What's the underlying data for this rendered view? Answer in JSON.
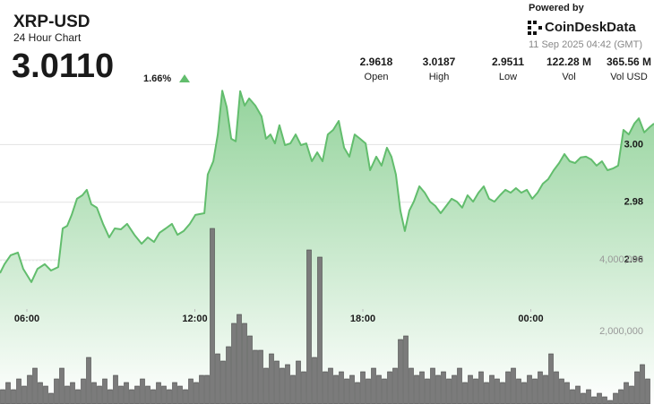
{
  "header": {
    "title": "XRP-USD",
    "subtitle": "24 Hour Chart",
    "price": "3.0110",
    "change": "1.66%",
    "powered_by": "Powered by",
    "brand": "CoinDeskData",
    "timestamp": "11 Sep 2025 04:42 (GMT)"
  },
  "stats": [
    {
      "value": "2.9618",
      "label": "Open"
    },
    {
      "value": "3.0187",
      "label": "High"
    },
    {
      "value": "2.9511",
      "label": "Low"
    },
    {
      "value": "122.28 M",
      "label": "Vol"
    },
    {
      "value": "365.56 M",
      "label": "Vol USD"
    }
  ],
  "chart_data": {
    "type": "line",
    "xlim": [
      5.04,
      28.4
    ],
    "xticks": [
      {
        "value": 6,
        "label": "06:00"
      },
      {
        "value": 12,
        "label": "12:00"
      },
      {
        "value": 18,
        "label": "18:00"
      },
      {
        "value": 24,
        "label": "00:00"
      }
    ],
    "ylim": [
      2.91,
      3.02
    ],
    "yticks": [
      2.96,
      2.98,
      {
        "value": 3.0,
        "label": "3.00"
      }
    ],
    "y2lim": [
      0,
      8850000
    ],
    "y2ticks": [
      {
        "value": 2000000,
        "label": "2,000,000"
      },
      {
        "value": 4000000,
        "label": "4,000,000"
      }
    ],
    "grid": true,
    "series": [
      {
        "type": "area",
        "color": "#62bd6d",
        "x": [
          5.04,
          5.2,
          5.42,
          5.68,
          5.87,
          6.16,
          6.38,
          6.64,
          6.86,
          7.12,
          7.28,
          7.44,
          7.6,
          7.79,
          7.98,
          8.14,
          8.3,
          8.5,
          8.72,
          8.94,
          9.14,
          9.36,
          9.58,
          9.84,
          10.1,
          10.32,
          10.54,
          10.74,
          10.96,
          11.18,
          11.38,
          11.6,
          11.82,
          12.02,
          12.34,
          12.46,
          12.66,
          12.82,
          12.98,
          13.14,
          13.3,
          13.46,
          13.62,
          13.78,
          13.94,
          14.16,
          14.38,
          14.54,
          14.7,
          14.86,
          15.02,
          15.22,
          15.41,
          15.6,
          15.79,
          15.98,
          16.18,
          16.37,
          16.56,
          16.75,
          16.94,
          17.14,
          17.33,
          17.52,
          17.71,
          17.9,
          18.1,
          18.26,
          18.48,
          18.67,
          18.86,
          19.02,
          19.18,
          19.34,
          19.5,
          19.66,
          19.82,
          20.02,
          20.21,
          20.4,
          20.59,
          20.78,
          20.98,
          21.17,
          21.36,
          21.55,
          21.74,
          21.94,
          22.13,
          22.32,
          22.51,
          22.7,
          22.9,
          23.09,
          23.28,
          23.47,
          23.66,
          23.86,
          24.05,
          24.24,
          24.43,
          24.62,
          24.82,
          25.01,
          25.2,
          25.39,
          25.58,
          25.78,
          25.97,
          26.16,
          26.35,
          26.54,
          26.74,
          26.93,
          27.12,
          27.31,
          27.5,
          27.7,
          27.86,
          28.05,
          28.24,
          28.4
        ],
        "values": [
          2.9554,
          2.9585,
          2.9616,
          2.9625,
          2.9569,
          2.9523,
          2.9569,
          2.9585,
          2.9563,
          2.9575,
          2.9709,
          2.9718,
          2.9756,
          2.9812,
          2.9824,
          2.9843,
          2.9793,
          2.9781,
          2.9725,
          2.9678,
          2.9709,
          2.9706,
          2.9725,
          2.9687,
          2.9656,
          2.9678,
          2.9662,
          2.9694,
          2.9709,
          2.9725,
          2.9687,
          2.97,
          2.9725,
          2.9756,
          2.9762,
          2.9896,
          2.9942,
          3.0035,
          3.0187,
          3.0129,
          3.002,
          3.0011,
          3.0185,
          3.0135,
          3.016,
          3.0135,
          3.0098,
          3.002,
          3.0035,
          3.0004,
          3.0067,
          2.9998,
          3.0004,
          3.0035,
          2.9998,
          3.0004,
          2.9942,
          2.9973,
          2.9942,
          3.0035,
          3.0051,
          3.0082,
          2.9989,
          2.9958,
          3.0035,
          3.002,
          3.0004,
          2.9911,
          2.9958,
          2.9927,
          2.9989,
          2.9958,
          2.9896,
          2.9771,
          2.97,
          2.9771,
          2.9802,
          2.9855,
          2.9833,
          2.9802,
          2.9787,
          2.9762,
          2.9787,
          2.9812,
          2.9802,
          2.9781,
          2.9824,
          2.9802,
          2.9833,
          2.9855,
          2.9812,
          2.9802,
          2.9824,
          2.9843,
          2.9833,
          2.9849,
          2.9833,
          2.9843,
          2.9812,
          2.9833,
          2.9864,
          2.988,
          2.9911,
          2.9936,
          2.9967,
          2.9942,
          2.9936,
          2.9955,
          2.9958,
          2.9948,
          2.9927,
          2.9942,
          2.9911,
          2.9917,
          2.9927,
          3.0051,
          3.0035,
          3.0073,
          3.0091,
          3.0042,
          3.006,
          3.0073
        ]
      },
      {
        "type": "bar",
        "axis": "y2",
        "color": "#7b7b7b",
        "x": [
          5.136,
          5.328,
          5.52,
          5.712,
          5.904,
          6.096,
          6.288,
          6.48,
          6.672,
          6.864,
          7.056,
          7.248,
          7.44,
          7.632,
          7.824,
          8.016,
          8.208,
          8.4,
          8.592,
          8.784,
          8.976,
          9.168,
          9.36,
          9.552,
          9.744,
          9.936,
          10.128,
          10.32,
          10.512,
          10.704,
          10.896,
          11.088,
          11.28,
          11.472,
          11.664,
          11.856,
          12.048,
          12.24,
          12.432,
          12.624,
          12.816,
          13.008,
          13.2,
          13.392,
          13.584,
          13.776,
          13.968,
          14.16,
          14.352,
          14.544,
          14.736,
          14.928,
          15.12,
          15.312,
          15.504,
          15.696,
          15.888,
          16.08,
          16.272,
          16.464,
          16.656,
          16.848,
          17.04,
          17.232,
          17.424,
          17.616,
          17.808,
          18.0,
          18.192,
          18.384,
          18.576,
          18.768,
          18.96,
          19.152,
          19.344,
          19.536,
          19.728,
          19.92,
          20.112,
          20.304,
          20.496,
          20.688,
          20.88,
          21.072,
          21.264,
          21.456,
          21.648,
          21.84,
          22.032,
          22.224,
          22.416,
          22.608,
          22.8,
          22.992,
          23.184,
          23.376,
          23.568,
          23.76,
          23.952,
          24.144,
          24.336,
          24.528,
          24.72,
          24.912,
          25.104,
          25.296,
          25.488,
          25.68,
          25.872,
          26.064,
          26.256,
          26.448,
          26.64,
          26.832,
          27.024,
          27.216,
          27.408,
          27.6,
          27.792,
          27.984,
          28.176
        ],
        "values": [
          400000,
          600000,
          400000,
          700000,
          500000,
          800000,
          1000000,
          600000,
          500000,
          300000,
          700000,
          1000000,
          500000,
          600000,
          400000,
          700000,
          1300000,
          600000,
          500000,
          700000,
          400000,
          800000,
          500000,
          600000,
          400000,
          500000,
          700000,
          500000,
          400000,
          600000,
          500000,
          400000,
          600000,
          500000,
          400000,
          700000,
          600000,
          800000,
          800000,
          4900000,
          1400000,
          1200000,
          1600000,
          2250000,
          2500000,
          2250000,
          1900000,
          1500000,
          1500000,
          1000000,
          1400000,
          1200000,
          1000000,
          1100000,
          800000,
          1200000,
          900000,
          4300000,
          1300000,
          4100000,
          900000,
          1000000,
          800000,
          900000,
          700000,
          800000,
          600000,
          900000,
          700000,
          1000000,
          800000,
          700000,
          900000,
          1000000,
          1800000,
          1900000,
          1000000,
          800000,
          900000,
          700000,
          1000000,
          800000,
          900000,
          700000,
          800000,
          1000000,
          600000,
          800000,
          700000,
          900000,
          600000,
          800000,
          700000,
          600000,
          900000,
          1000000,
          700000,
          600000,
          800000,
          700000,
          900000,
          800000,
          1400000,
          900000,
          700000,
          600000,
          400000,
          500000,
          300000,
          400000,
          200000,
          300000,
          200000,
          100000,
          300000,
          400000,
          600000,
          500000,
          900000,
          1100000,
          700000
        ]
      }
    ]
  }
}
